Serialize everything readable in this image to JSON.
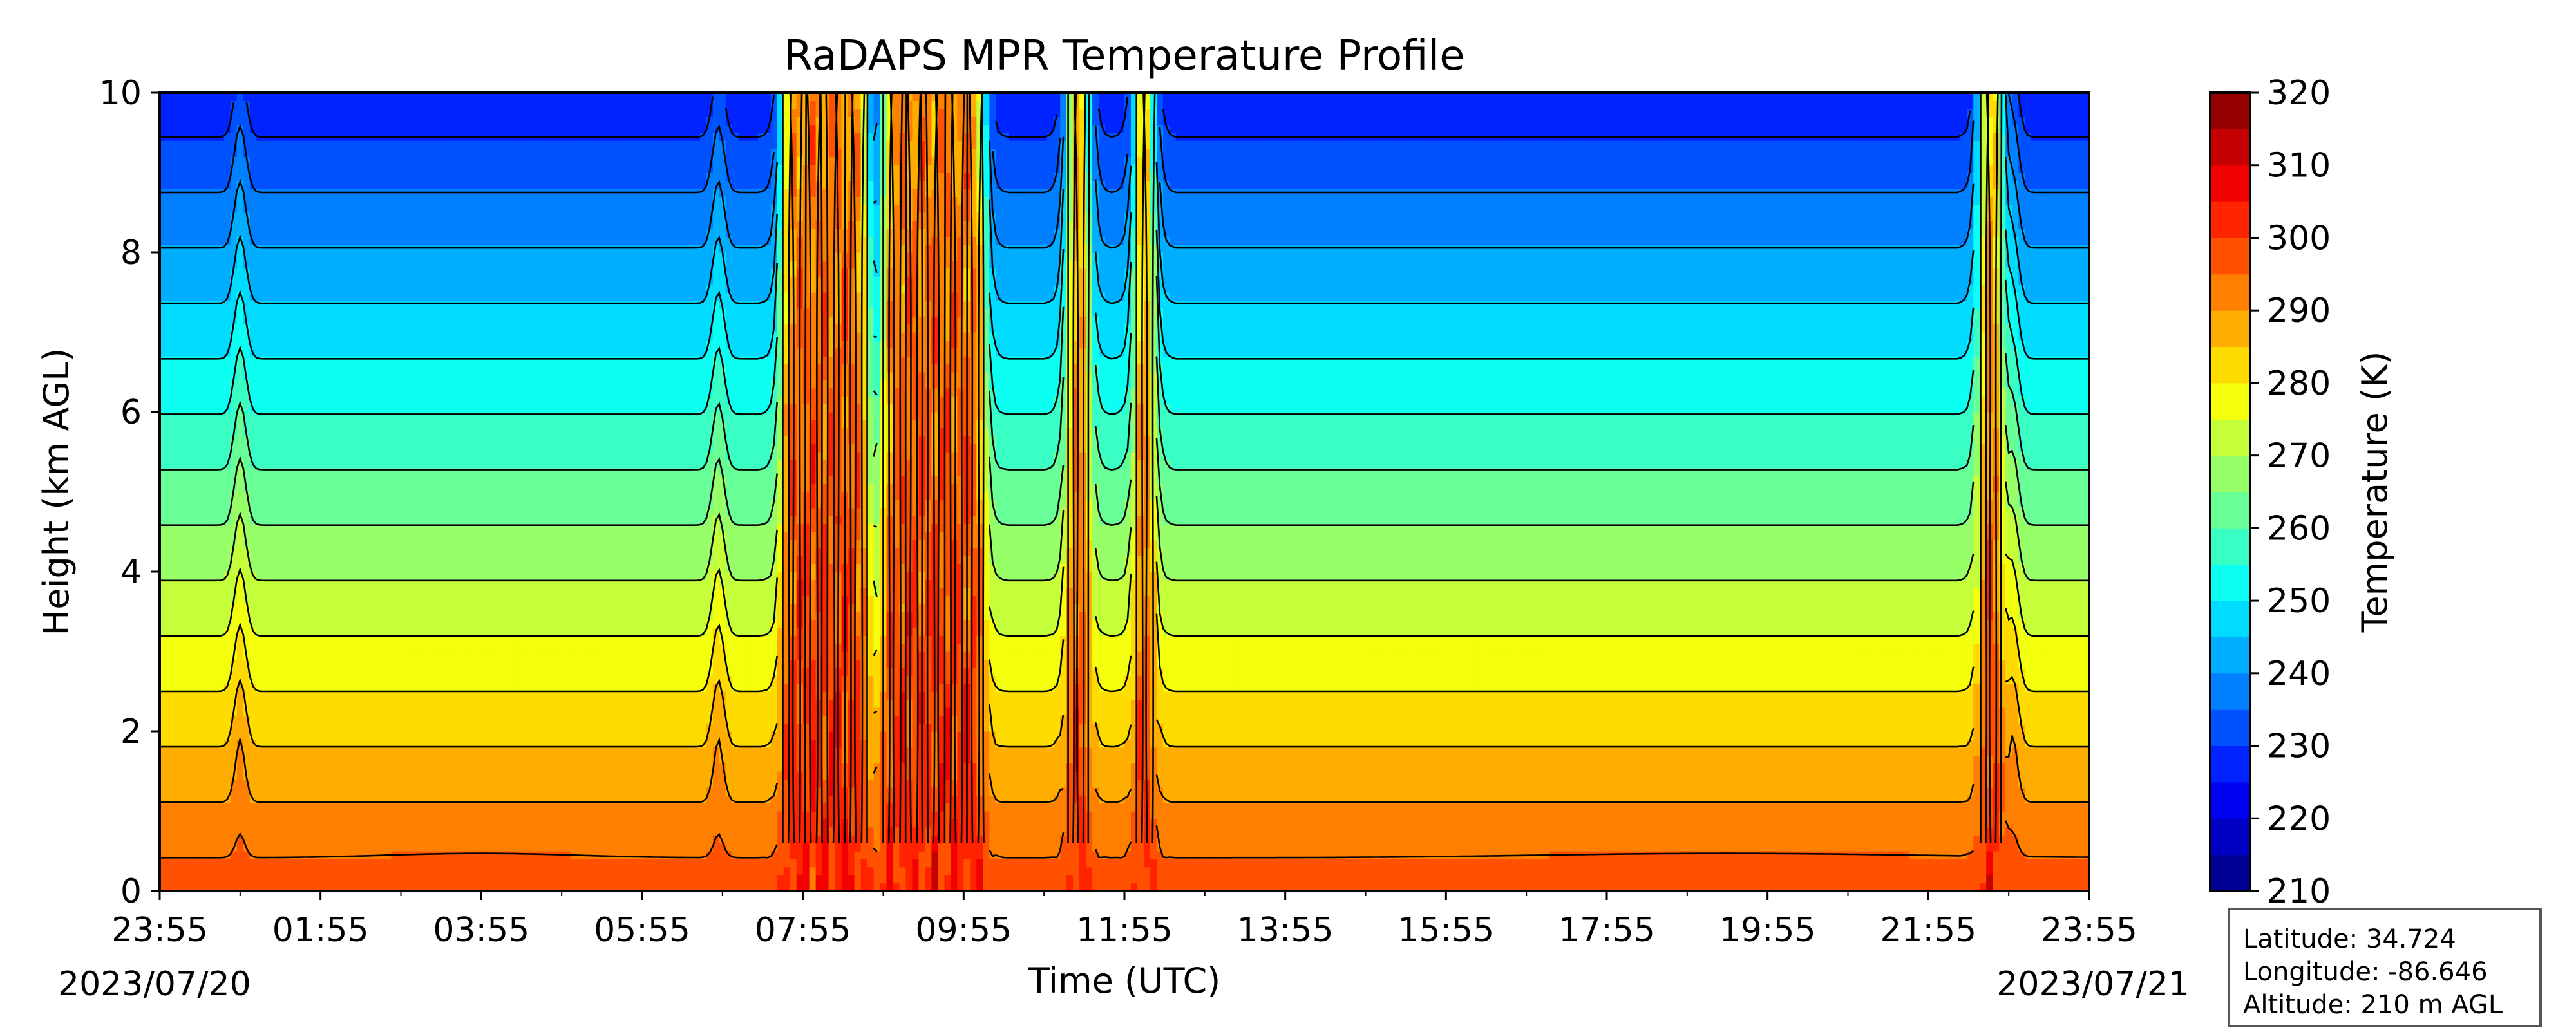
{
  "chart_data": {
    "type": "heatmap",
    "title": "RaDAPS MPR Temperature Profile",
    "xlabel": "Time (UTC)",
    "ylabel": "Height (km AGL)",
    "colorbar_label": "Temperature (K)",
    "x_tick_labels": [
      "23:55",
      "01:55",
      "03:55",
      "05:55",
      "07:55",
      "09:55",
      "11:55",
      "13:55",
      "15:55",
      "17:55",
      "19:55",
      "21:55",
      "23:55"
    ],
    "x_date_labels": {
      "start": "2023/07/20",
      "end": "2023/07/21"
    },
    "x_range_hours": [
      0,
      24
    ],
    "ylim": [
      0,
      10
    ],
    "y_ticks": [
      0,
      2,
      4,
      6,
      8,
      10
    ],
    "colorbar_ticks": [
      210,
      220,
      230,
      240,
      250,
      260,
      270,
      280,
      290,
      300,
      310,
      320
    ],
    "colorbar_range": [
      210,
      320
    ],
    "contour_interval_K": 5,
    "colormap": "jet",
    "surface_temperature_K": 298,
    "lapse_rate_K_per_km": 7.2,
    "convective_episodes": [
      {
        "start_hour": 7.75,
        "end_hour": 8.8,
        "label": "07:55"
      },
      {
        "start_hour": 9.0,
        "end_hour": 10.25,
        "label": "09:55"
      },
      {
        "start_hour": 11.3,
        "end_hour": 11.55,
        "label": "11:55"
      },
      {
        "start_hour": 12.15,
        "end_hour": 12.35,
        "label": "11:55"
      },
      {
        "start_hour": 22.65,
        "end_hour": 22.9,
        "label": "21:55"
      }
    ]
  },
  "info_box": {
    "latitude": "Latitude: 34.724",
    "longitude": "Longitude: -86.646",
    "altitude": "Altitude: 210 m AGL"
  }
}
